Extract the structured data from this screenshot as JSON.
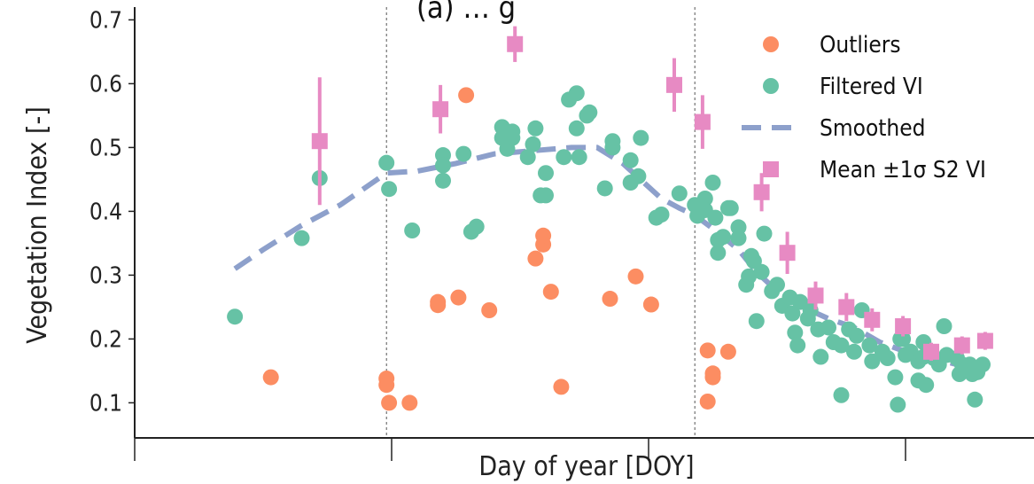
{
  "chart_data": {
    "type": "scatter",
    "title": "(a) … g",
    "xlabel": "Day of year [DOY]",
    "ylabel": "Vegetation Index [-]",
    "xlim": [
      50,
      400
    ],
    "ylim": [
      0.045,
      0.72
    ],
    "x_ticks": [
      50,
      150,
      250,
      350
    ],
    "y_ticks": [
      0.1,
      0.2,
      0.3,
      0.4,
      0.5,
      0.6,
      0.7
    ],
    "y_tick_labels": [
      "0.1",
      "0.2",
      "0.3",
      "0.4",
      "0.5",
      "0.6",
      "0.7"
    ],
    "vertical_lines": [
      148,
      268
    ],
    "grid": false,
    "legend_position": "top-right",
    "colors": {
      "outliers": "#fc8d62",
      "filtered": "#66c2a5",
      "smoothed": "#8da0cb",
      "mean": "#e78ac3"
    },
    "series": [
      {
        "name": "Outliers",
        "kind": "scatter",
        "points": [
          [
            103,
            0.14
          ],
          [
            148,
            0.138
          ],
          [
            148,
            0.128
          ],
          [
            149,
            0.1
          ],
          [
            157,
            0.1
          ],
          [
            168,
            0.253
          ],
          [
            168,
            0.258
          ],
          [
            176,
            0.265
          ],
          [
            179,
            0.582
          ],
          [
            188,
            0.245
          ],
          [
            206,
            0.326
          ],
          [
            209,
            0.348
          ],
          [
            209,
            0.362
          ],
          [
            212,
            0.274
          ],
          [
            216,
            0.125
          ],
          [
            235,
            0.263
          ],
          [
            245,
            0.298
          ],
          [
            251,
            0.254
          ],
          [
            273,
            0.182
          ],
          [
            273,
            0.102
          ],
          [
            275,
            0.146
          ],
          [
            275,
            0.14
          ],
          [
            281,
            0.18
          ]
        ]
      },
      {
        "name": "Filtered VI",
        "kind": "scatter",
        "points": [
          [
            89,
            0.235
          ],
          [
            115,
            0.358
          ],
          [
            122,
            0.452
          ],
          [
            148,
            0.476
          ],
          [
            149,
            0.435
          ],
          [
            158,
            0.37
          ],
          [
            170,
            0.488
          ],
          [
            170,
            0.472
          ],
          [
            170,
            0.448
          ],
          [
            178,
            0.49
          ],
          [
            181,
            0.368
          ],
          [
            183,
            0.376
          ],
          [
            193,
            0.532
          ],
          [
            193,
            0.515
          ],
          [
            195,
            0.498
          ],
          [
            197,
            0.525
          ],
          [
            197,
            0.515
          ],
          [
            203,
            0.485
          ],
          [
            205,
            0.505
          ],
          [
            206,
            0.53
          ],
          [
            208,
            0.425
          ],
          [
            210,
            0.425
          ],
          [
            210,
            0.46
          ],
          [
            217,
            0.485
          ],
          [
            219,
            0.575
          ],
          [
            222,
            0.585
          ],
          [
            222,
            0.53
          ],
          [
            223,
            0.485
          ],
          [
            226,
            0.55
          ],
          [
            227,
            0.555
          ],
          [
            233,
            0.436
          ],
          [
            236,
            0.51
          ],
          [
            236,
            0.5
          ],
          [
            243,
            0.48
          ],
          [
            243,
            0.445
          ],
          [
            246,
            0.455
          ],
          [
            247,
            0.515
          ],
          [
            253,
            0.39
          ],
          [
            255,
            0.395
          ],
          [
            262,
            0.428
          ],
          [
            268,
            0.41
          ],
          [
            269,
            0.393
          ],
          [
            272,
            0.42
          ],
          [
            272,
            0.402
          ],
          [
            275,
            0.445
          ],
          [
            276,
            0.39
          ],
          [
            277,
            0.335
          ],
          [
            277,
            0.355
          ],
          [
            279,
            0.36
          ],
          [
            281,
            0.405
          ],
          [
            282,
            0.405
          ],
          [
            285,
            0.375
          ],
          [
            285,
            0.358
          ],
          [
            288,
            0.285
          ],
          [
            289,
            0.298
          ],
          [
            290,
            0.33
          ],
          [
            291,
            0.322
          ],
          [
            292,
            0.228
          ],
          [
            294,
            0.305
          ],
          [
            295,
            0.365
          ],
          [
            298,
            0.275
          ],
          [
            300,
            0.285
          ],
          [
            302,
            0.252
          ],
          [
            305,
            0.265
          ],
          [
            306,
            0.24
          ],
          [
            307,
            0.21
          ],
          [
            308,
            0.19
          ],
          [
            309,
            0.258
          ],
          [
            312,
            0.232
          ],
          [
            313,
            0.245
          ],
          [
            316,
            0.215
          ],
          [
            317,
            0.172
          ],
          [
            320,
            0.218
          ],
          [
            322,
            0.195
          ],
          [
            325,
            0.19
          ],
          [
            325,
            0.112
          ],
          [
            328,
            0.215
          ],
          [
            330,
            0.18
          ],
          [
            331,
            0.205
          ],
          [
            333,
            0.245
          ],
          [
            336,
            0.19
          ],
          [
            337,
            0.165
          ],
          [
            341,
            0.18
          ],
          [
            343,
            0.17
          ],
          [
            346,
            0.14
          ],
          [
            347,
            0.097
          ],
          [
            348,
            0.2
          ],
          [
            349,
            0.2
          ],
          [
            350,
            0.175
          ],
          [
            352,
            0.18
          ],
          [
            355,
            0.165
          ],
          [
            355,
            0.135
          ],
          [
            357,
            0.195
          ],
          [
            357,
            0.172
          ],
          [
            358,
            0.128
          ],
          [
            361,
            0.17
          ],
          [
            363,
            0.16
          ],
          [
            365,
            0.22
          ],
          [
            366,
            0.175
          ],
          [
            370,
            0.17
          ],
          [
            371,
            0.145
          ],
          [
            372,
            0.16
          ],
          [
            375,
            0.16
          ],
          [
            376,
            0.145
          ],
          [
            377,
            0.105
          ],
          [
            378,
            0.148
          ],
          [
            380,
            0.16
          ]
        ]
      },
      {
        "name": "Smoothed",
        "kind": "line",
        "points": [
          [
            89,
            0.31
          ],
          [
            100,
            0.34
          ],
          [
            115,
            0.378
          ],
          [
            130,
            0.41
          ],
          [
            148,
            0.46
          ],
          [
            160,
            0.463
          ],
          [
            175,
            0.475
          ],
          [
            190,
            0.49
          ],
          [
            205,
            0.495
          ],
          [
            220,
            0.5
          ],
          [
            230,
            0.5
          ],
          [
            240,
            0.475
          ],
          [
            255,
            0.42
          ],
          [
            262,
            0.405
          ],
          [
            268,
            0.394
          ],
          [
            276,
            0.37
          ],
          [
            285,
            0.34
          ],
          [
            292,
            0.305
          ],
          [
            300,
            0.275
          ],
          [
            310,
            0.25
          ],
          [
            320,
            0.232
          ],
          [
            330,
            0.218
          ],
          [
            340,
            0.195
          ],
          [
            350,
            0.18
          ],
          [
            360,
            0.17
          ],
          [
            370,
            0.16
          ],
          [
            378,
            0.15
          ]
        ]
      },
      {
        "name": "Mean ±1σ S2 VI",
        "kind": "errorbar",
        "points": [
          [
            122,
            0.51,
            0.1
          ],
          [
            169,
            0.56,
            0.038
          ],
          [
            198,
            0.662,
            0.028
          ],
          [
            260,
            0.598,
            0.042
          ],
          [
            271,
            0.54,
            0.042
          ],
          [
            294,
            0.43,
            0.03
          ],
          [
            304,
            0.335,
            0.033
          ],
          [
            315,
            0.268,
            0.022
          ],
          [
            327,
            0.25,
            0.022
          ],
          [
            337,
            0.23,
            0.018
          ],
          [
            349,
            0.22,
            0.016
          ],
          [
            360,
            0.18,
            0.014
          ],
          [
            372,
            0.19,
            0.014
          ],
          [
            381,
            0.197,
            0.014
          ]
        ]
      }
    ]
  }
}
